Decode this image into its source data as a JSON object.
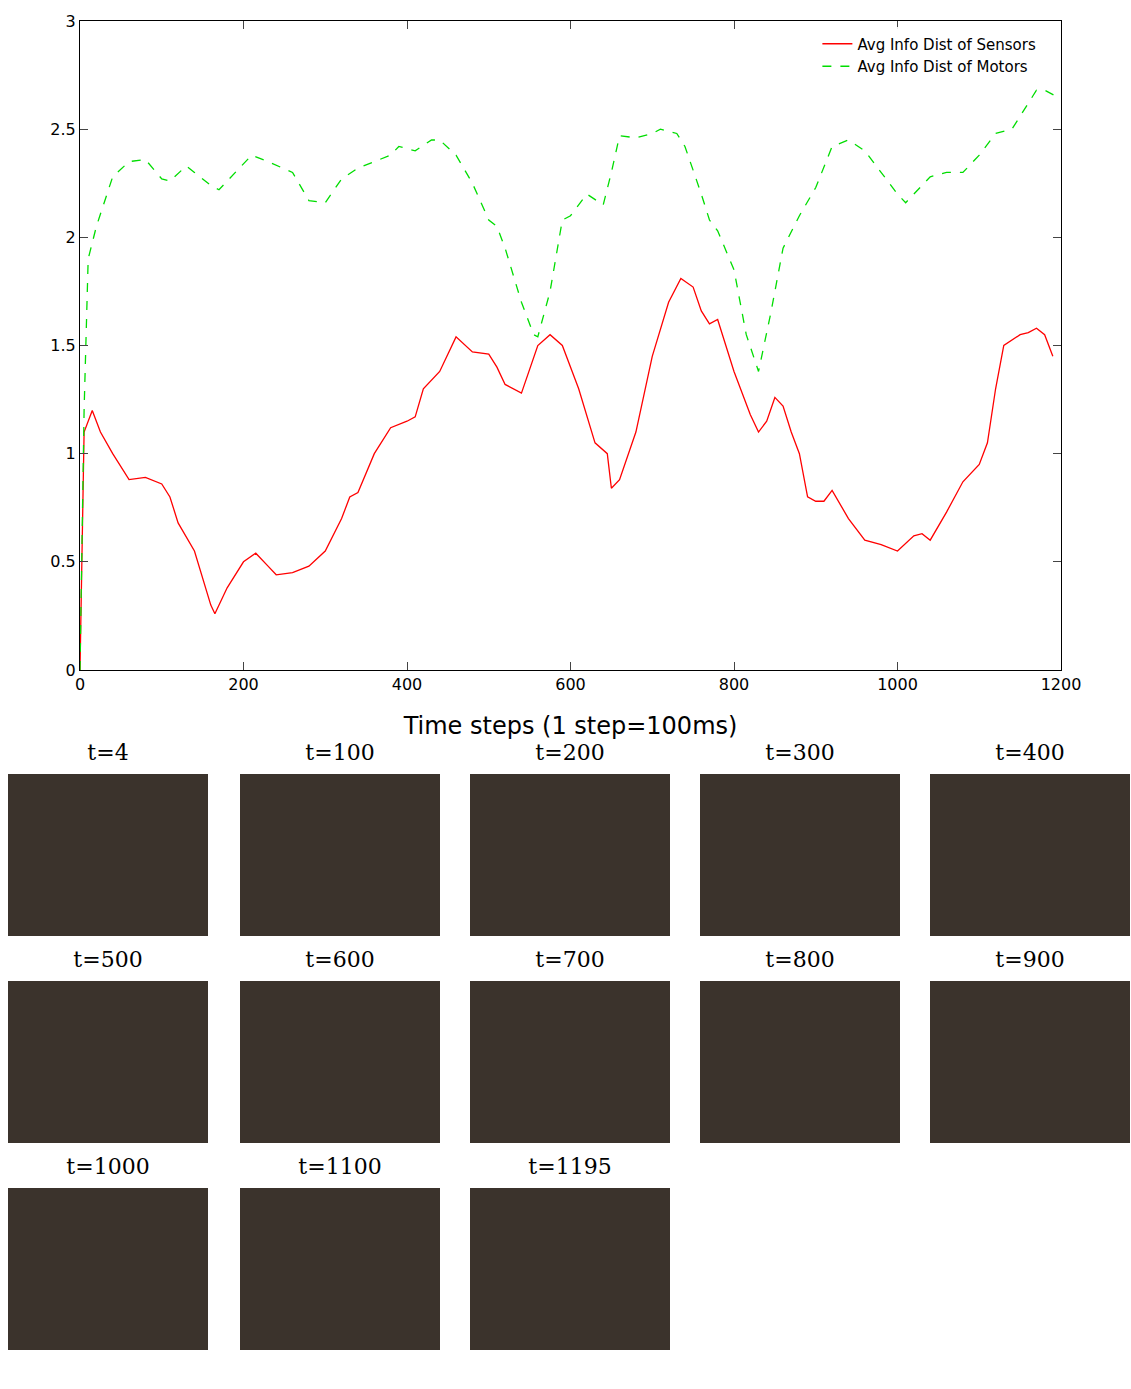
{
  "chart_data": {
    "type": "line",
    "x_label": "Time steps (1 step=100ms)",
    "xlim": [
      0,
      1200
    ],
    "xticks": [
      0,
      200,
      400,
      600,
      800,
      1000,
      1200
    ],
    "ylim": [
      0,
      3
    ],
    "yticks": [
      0,
      0.5,
      1,
      1.5,
      2,
      2.5,
      3
    ],
    "grid": false,
    "legend": "top-right",
    "series": [
      {
        "name": "Avg Info Dist of Sensors",
        "color": "#ff0000",
        "line_style": "solid",
        "x": [
          0,
          5,
          15,
          25,
          40,
          60,
          80,
          100,
          110,
          120,
          140,
          160,
          165,
          180,
          200,
          215,
          230,
          240,
          260,
          280,
          300,
          320,
          330,
          340,
          360,
          380,
          400,
          410,
          420,
          440,
          460,
          480,
          500,
          510,
          520,
          540,
          560,
          575,
          590,
          610,
          630,
          645,
          650,
          660,
          680,
          700,
          720,
          735,
          750,
          760,
          770,
          780,
          790,
          800,
          820,
          830,
          840,
          850,
          860,
          870,
          880,
          890,
          900,
          910,
          920,
          940,
          960,
          980,
          1000,
          1020,
          1030,
          1040,
          1060,
          1080,
          1100,
          1110,
          1120,
          1130,
          1150,
          1160,
          1170,
          1180,
          1190
        ],
        "values": [
          0,
          1.1,
          1.2,
          1.1,
          1.0,
          0.88,
          0.89,
          0.86,
          0.8,
          0.68,
          0.55,
          0.3,
          0.26,
          0.38,
          0.5,
          0.54,
          0.48,
          0.44,
          0.45,
          0.48,
          0.55,
          0.7,
          0.8,
          0.82,
          1.0,
          1.12,
          1.15,
          1.17,
          1.3,
          1.38,
          1.54,
          1.47,
          1.46,
          1.4,
          1.32,
          1.28,
          1.5,
          1.55,
          1.5,
          1.3,
          1.05,
          1.0,
          0.84,
          0.88,
          1.1,
          1.45,
          1.7,
          1.81,
          1.77,
          1.66,
          1.6,
          1.62,
          1.5,
          1.38,
          1.18,
          1.1,
          1.15,
          1.26,
          1.22,
          1.1,
          1.0,
          0.8,
          0.78,
          0.78,
          0.83,
          0.7,
          0.6,
          0.58,
          0.55,
          0.62,
          0.63,
          0.6,
          0.73,
          0.87,
          0.95,
          1.05,
          1.3,
          1.5,
          1.55,
          1.56,
          1.58,
          1.55,
          1.45
        ]
      },
      {
        "name": "Avg Info Dist of Motors",
        "color": "#00dd00",
        "line_style": "dash",
        "x": [
          0,
          5,
          10,
          20,
          40,
          60,
          80,
          100,
          110,
          130,
          140,
          160,
          170,
          190,
          210,
          230,
          260,
          280,
          300,
          320,
          340,
          360,
          380,
          390,
          410,
          430,
          440,
          460,
          480,
          500,
          510,
          520,
          540,
          555,
          560,
          575,
          590,
          600,
          620,
          640,
          650,
          660,
          680,
          700,
          710,
          730,
          740,
          760,
          770,
          780,
          800,
          815,
          830,
          845,
          860,
          880,
          900,
          920,
          940,
          960,
          980,
          1000,
          1010,
          1020,
          1040,
          1060,
          1080,
          1100,
          1120,
          1140,
          1160,
          1170,
          1180,
          1195
        ],
        "values": [
          0,
          1.2,
          1.9,
          2.05,
          2.28,
          2.35,
          2.36,
          2.27,
          2.26,
          2.33,
          2.3,
          2.24,
          2.22,
          2.3,
          2.38,
          2.35,
          2.3,
          2.17,
          2.16,
          2.27,
          2.32,
          2.35,
          2.38,
          2.42,
          2.4,
          2.45,
          2.45,
          2.38,
          2.25,
          2.08,
          2.05,
          1.95,
          1.7,
          1.55,
          1.54,
          1.75,
          2.08,
          2.1,
          2.2,
          2.15,
          2.3,
          2.47,
          2.46,
          2.48,
          2.5,
          2.48,
          2.42,
          2.2,
          2.08,
          2.03,
          1.85,
          1.55,
          1.38,
          1.65,
          1.95,
          2.1,
          2.23,
          2.42,
          2.45,
          2.4,
          2.3,
          2.2,
          2.16,
          2.2,
          2.28,
          2.3,
          2.3,
          2.38,
          2.48,
          2.5,
          2.62,
          2.68,
          2.68,
          2.65
        ]
      }
    ],
    "panels": [
      "t=4",
      "t=100",
      "t=200",
      "t=300",
      "t=400",
      "t=500",
      "t=600",
      "t=700",
      "t=800",
      "t=900",
      "t=1000",
      "t=1100",
      "t=1195"
    ]
  }
}
